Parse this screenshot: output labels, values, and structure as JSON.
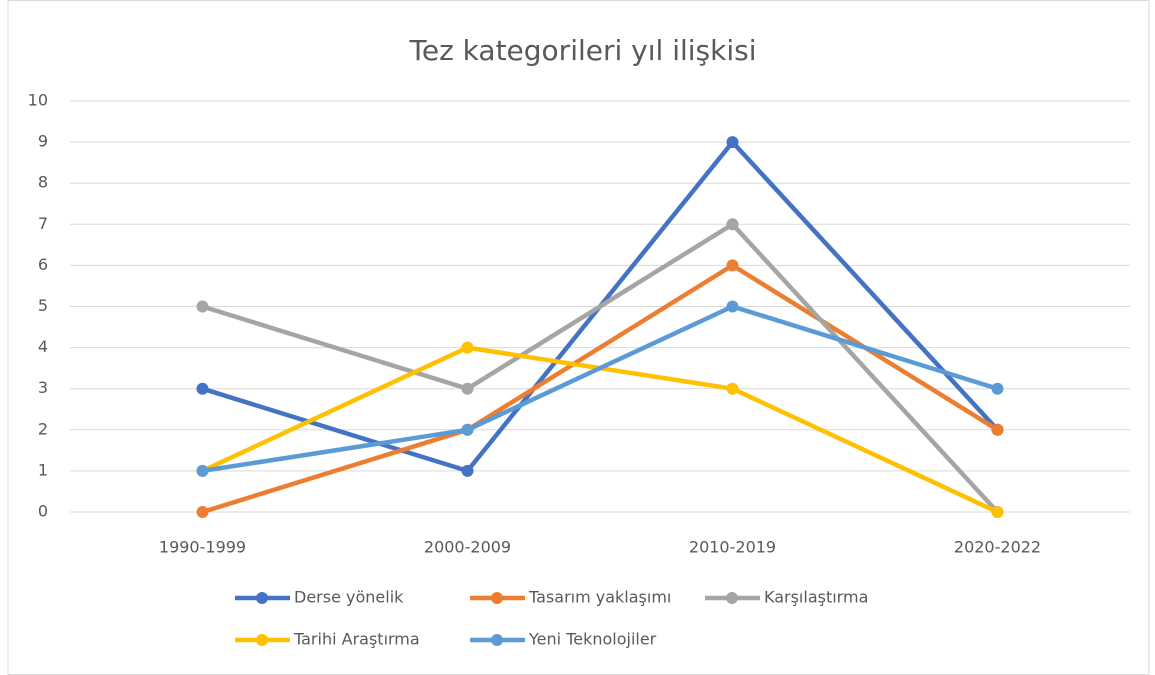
{
  "chart_data": {
    "type": "line",
    "title": "Tez kategorileri yıl ilişkisi",
    "categories": [
      "1990-1999",
      "2000-2009",
      "2010-2019",
      "2020-2022"
    ],
    "series": [
      {
        "name": "Derse yönelik",
        "color": "#4472c4",
        "values": [
          3,
          1,
          9,
          2
        ]
      },
      {
        "name": "Tasarım yaklaşımı",
        "color": "#ed7d31",
        "values": [
          0,
          2,
          6,
          2
        ]
      },
      {
        "name": "Karşılaştırma",
        "color": "#a5a5a5",
        "values": [
          5,
          3,
          7,
          0
        ]
      },
      {
        "name": "Tarihi Araştırma",
        "color": "#ffc000",
        "values": [
          1,
          4,
          3,
          0
        ]
      },
      {
        "name": "Yeni Teknolojiler",
        "color": "#5b9bd5",
        "values": [
          1,
          2,
          5,
          3
        ]
      }
    ],
    "ylim": [
      0,
      10
    ],
    "yticks": [
      0,
      1,
      2,
      3,
      4,
      5,
      6,
      7,
      8,
      9,
      10
    ],
    "grid": true,
    "legend": "bottom"
  }
}
